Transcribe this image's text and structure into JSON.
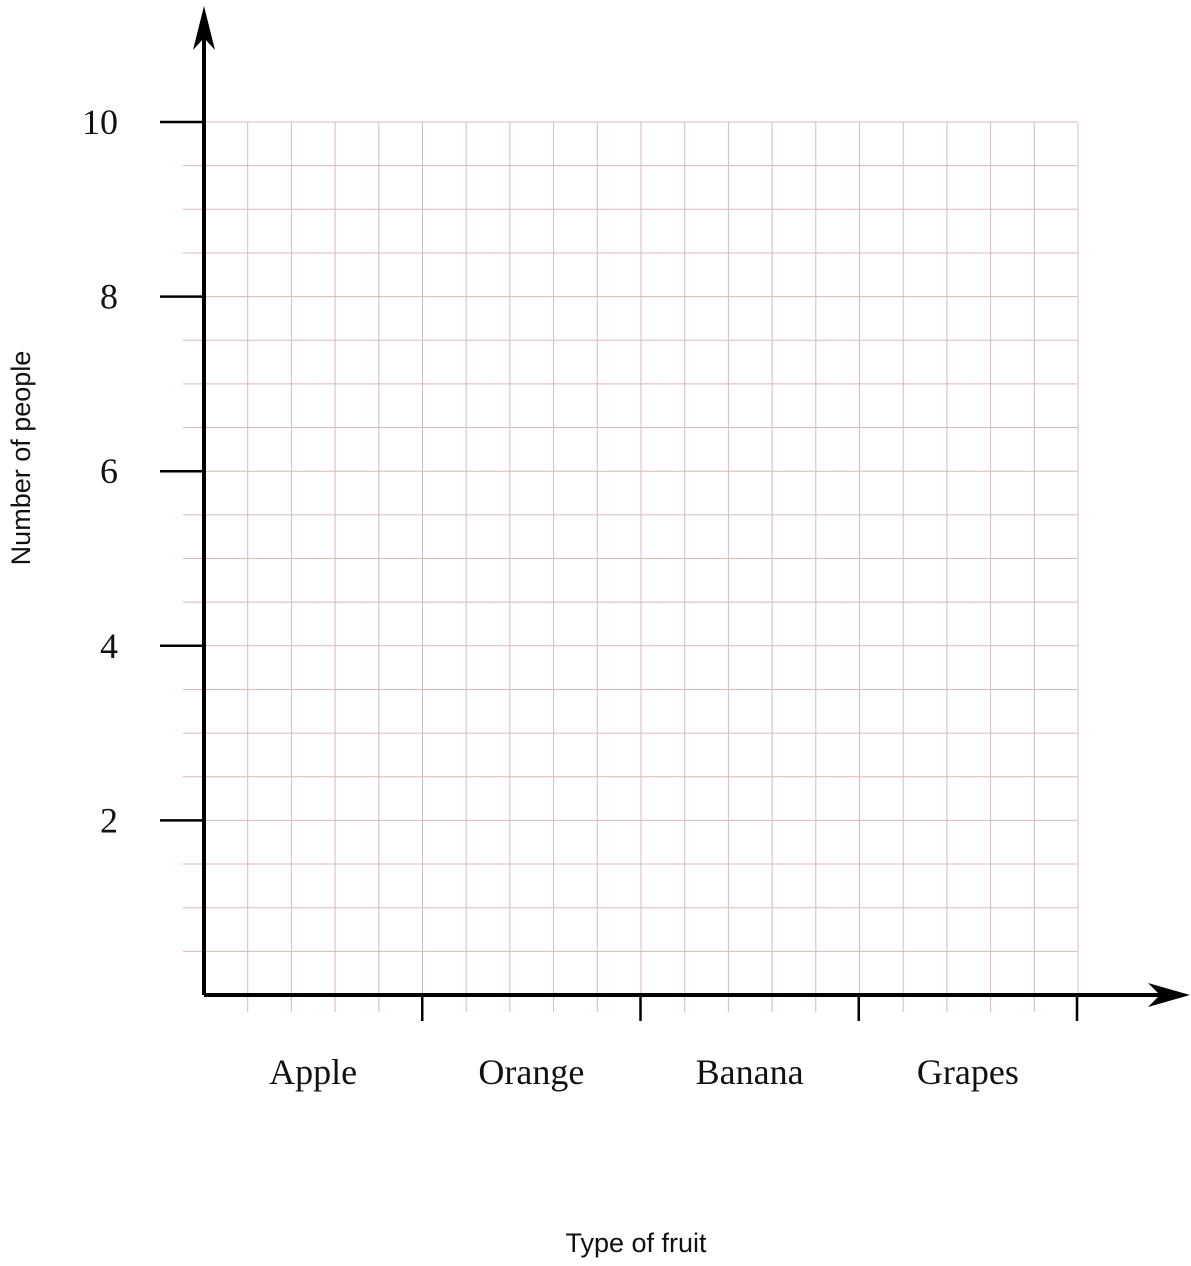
{
  "chart_data": {
    "type": "bar",
    "title": "",
    "xlabel": "Type of fruit",
    "ylabel": "Number of people",
    "categories": [
      "Apple",
      "Orange",
      "Banana",
      "Grapes"
    ],
    "series": [
      {
        "values": [
          null,
          null,
          null,
          null
        ]
      }
    ],
    "ylim": [
      0,
      10
    ],
    "yticks": [
      "2",
      "4",
      "6",
      "8",
      "10"
    ],
    "grid": true,
    "grid_minor_step": 0.5,
    "grid_color": "#dcb8b8",
    "axis_color": "#000000"
  }
}
